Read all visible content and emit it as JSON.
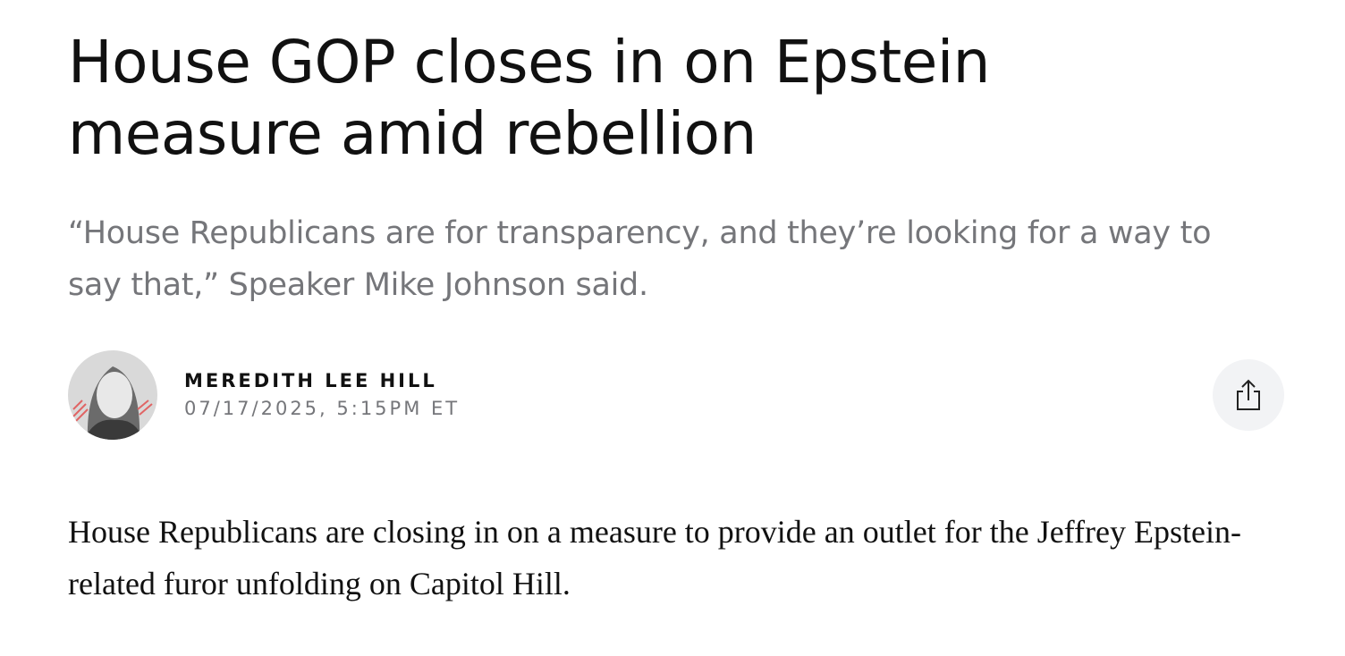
{
  "article": {
    "headline": "House GOP closes in on Epstein measure amid rebellion",
    "dek": "“House Republicans are for transparency, and they’re looking for a way to say that,” Speaker Mike Johnson said.",
    "byline": {
      "author": "MEREDITH LEE HILL",
      "timestamp": "07/17/2025, 5:15PM ET"
    },
    "body": [
      "House Republicans are closing in on a measure to provide an outlet for the Jeffrey Epstein-related furor unfolding on Capitol Hill."
    ]
  }
}
